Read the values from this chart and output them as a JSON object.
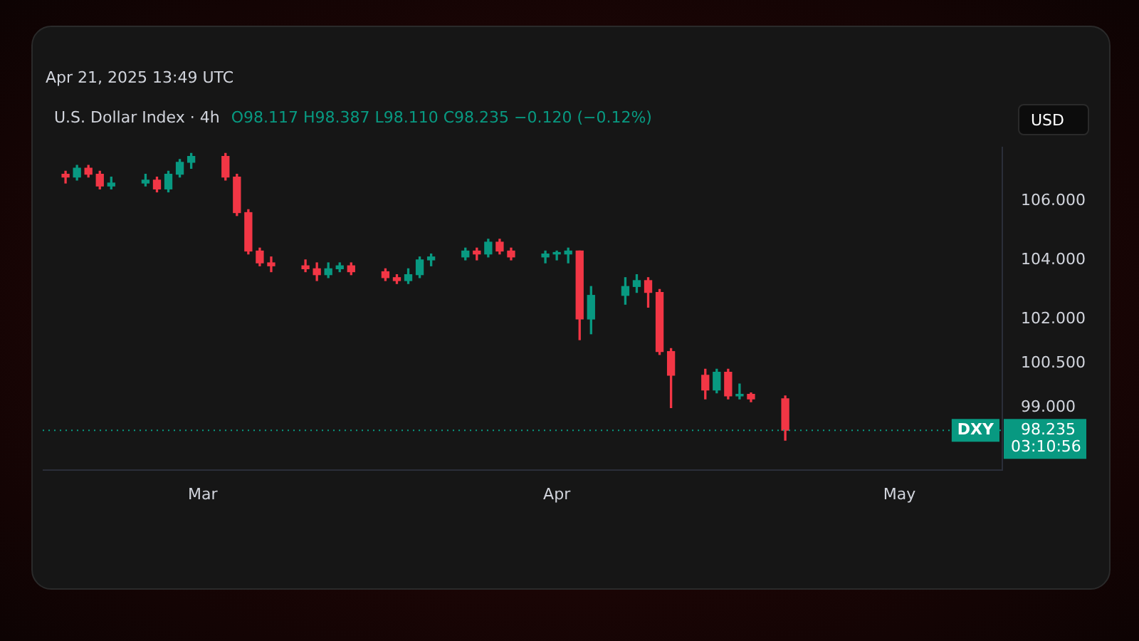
{
  "chart_data": {
    "type": "candlestick",
    "title": "U.S. Dollar Index · 4h",
    "annotations": [
      "Apr 21, 2025 13:49 UTC",
      "O98.117 H98.387 L98.110 C98.235 −0.120 (−0.12%)",
      "USD",
      "03:10:56"
    ],
    "x": [
      "2025-02-17",
      "2025-02-18",
      "2025-02-19",
      "2025-02-20",
      "2025-02-21",
      "2025-02-24",
      "2025-02-25",
      "2025-02-26",
      "2025-02-27",
      "2025-02-28",
      "2025-03-03",
      "2025-03-04",
      "2025-03-05",
      "2025-03-06",
      "2025-03-07",
      "2025-03-10",
      "2025-03-11",
      "2025-03-12",
      "2025-03-13",
      "2025-03-14",
      "2025-03-17",
      "2025-03-18",
      "2025-03-19",
      "2025-03-20",
      "2025-03-21",
      "2025-03-24",
      "2025-03-25",
      "2025-03-26",
      "2025-03-27",
      "2025-03-28",
      "2025-03-31",
      "2025-04-01",
      "2025-04-02",
      "2025-04-03",
      "2025-04-04",
      "2025-04-07",
      "2025-04-08",
      "2025-04-09",
      "2025-04-10",
      "2025-04-11",
      "2025-04-14",
      "2025-04-15",
      "2025-04-16",
      "2025-04-17",
      "2025-04-18",
      "2025-04-21"
    ],
    "ohlc": [
      [
        106.9,
        107.0,
        106.6,
        106.8
      ],
      [
        106.8,
        107.2,
        106.7,
        107.1
      ],
      [
        107.1,
        107.2,
        106.8,
        106.9
      ],
      [
        106.9,
        107.0,
        106.4,
        106.5
      ],
      [
        106.5,
        106.8,
        106.4,
        106.6
      ],
      [
        106.6,
        106.9,
        106.5,
        106.7
      ],
      [
        106.7,
        106.8,
        106.3,
        106.4
      ],
      [
        106.4,
        107.0,
        106.3,
        106.9
      ],
      [
        106.9,
        107.4,
        106.8,
        107.3
      ],
      [
        107.3,
        107.6,
        107.1,
        107.5
      ],
      [
        107.5,
        107.6,
        106.7,
        106.8
      ],
      [
        106.8,
        106.9,
        105.5,
        105.6
      ],
      [
        105.6,
        105.7,
        104.2,
        104.3
      ],
      [
        104.3,
        104.4,
        103.8,
        103.9
      ],
      [
        103.9,
        104.1,
        103.6,
        103.8
      ],
      [
        103.8,
        104.0,
        103.6,
        103.7
      ],
      [
        103.7,
        103.9,
        103.3,
        103.5
      ],
      [
        103.5,
        103.9,
        103.4,
        103.7
      ],
      [
        103.7,
        103.9,
        103.6,
        103.8
      ],
      [
        103.8,
        103.9,
        103.5,
        103.6
      ],
      [
        103.6,
        103.7,
        103.3,
        103.4
      ],
      [
        103.4,
        103.5,
        103.2,
        103.3
      ],
      [
        103.3,
        103.7,
        103.2,
        103.5
      ],
      [
        103.5,
        104.1,
        103.4,
        104.0
      ],
      [
        104.0,
        104.2,
        103.8,
        104.1
      ],
      [
        104.1,
        104.4,
        104.0,
        104.3
      ],
      [
        104.3,
        104.4,
        104.0,
        104.2
      ],
      [
        104.2,
        104.7,
        104.1,
        104.6
      ],
      [
        104.6,
        104.7,
        104.2,
        104.3
      ],
      [
        104.3,
        104.4,
        104.0,
        104.1
      ],
      [
        104.1,
        104.3,
        103.9,
        104.2
      ],
      [
        104.2,
        104.3,
        104.0,
        104.25
      ],
      [
        104.2,
        104.4,
        103.9,
        104.3
      ],
      [
        104.3,
        104.3,
        101.3,
        102.0
      ],
      [
        102.0,
        103.1,
        101.5,
        102.8
      ],
      [
        102.8,
        103.4,
        102.5,
        103.1
      ],
      [
        103.1,
        103.5,
        102.9,
        103.3
      ],
      [
        103.3,
        103.4,
        102.4,
        102.9
      ],
      [
        102.9,
        103.0,
        100.8,
        100.9
      ],
      [
        100.9,
        101.0,
        99.0,
        100.1
      ],
      [
        100.1,
        100.3,
        99.3,
        99.6
      ],
      [
        99.6,
        100.3,
        99.5,
        100.2
      ],
      [
        100.2,
        100.3,
        99.3,
        99.4
      ],
      [
        99.4,
        99.8,
        99.3,
        99.45
      ],
      [
        99.45,
        99.5,
        99.2,
        99.3
      ],
      [
        99.3,
        99.4,
        97.9,
        98.235
      ]
    ],
    "colors": [
      "#f23645",
      "#089981",
      "#f23645",
      "#f23645",
      "#089981",
      "#089981",
      "#f23645",
      "#089981",
      "#089981",
      "#089981",
      "#f23645",
      "#f23645",
      "#f23645",
      "#f23645",
      "#f23645",
      "#f23645",
      "#f23645",
      "#089981",
      "#089981",
      "#f23645",
      "#f23645",
      "#f23645",
      "#089981",
      "#089981",
      "#089981",
      "#089981",
      "#f23645",
      "#089981",
      "#f23645",
      "#f23645",
      "#089981",
      "#089981",
      "#089981",
      "#f23645",
      "#089981",
      "#089981",
      "#089981",
      "#f23645",
      "#f23645",
      "#f23645",
      "#f23645",
      "#089981",
      "#f23645",
      "#089981",
      "#f23645",
      "#f23645"
    ],
    "xlim": [
      "2025-02-15",
      "2025-05-10"
    ],
    "xticks": [
      {
        "value": "2025-03-01",
        "label": "Mar"
      },
      {
        "value": "2025-04-01",
        "label": "Apr"
      },
      {
        "value": "2025-05-01",
        "label": "May"
      }
    ],
    "ylim": [
      96.9,
      107.8
    ],
    "yticks": [
      {
        "value": 98.235,
        "label": "98.235"
      },
      {
        "value": 99,
        "label": "99.000"
      },
      {
        "value": 100.5,
        "label": "100.500"
      },
      {
        "value": 102,
        "label": "102.000"
      },
      {
        "value": 104,
        "label": "104.000"
      },
      {
        "value": 106,
        "label": "106.000"
      }
    ],
    "ref_lines": [
      {
        "axis": "y",
        "value": 98.235,
        "label": "DXY",
        "color": "#089981",
        "line_style": "dotted"
      }
    ]
  }
}
